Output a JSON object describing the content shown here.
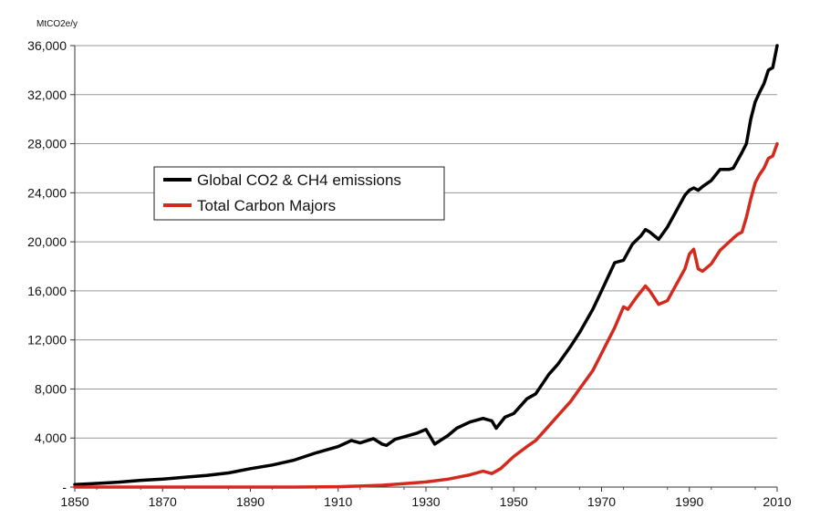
{
  "chart_data": {
    "type": "line",
    "unit_label": "MtCO2e/y",
    "xlim": [
      1850,
      2010
    ],
    "ylim": [
      0,
      36000
    ],
    "x_ticks": [
      "1850",
      "1870",
      "1890",
      "1910",
      "1930",
      "1950",
      "1970",
      "1990",
      "2010"
    ],
    "y_ticks": [
      "-",
      "4,000",
      "8,000",
      "12,000",
      "16,000",
      "20,000",
      "24,000",
      "28,000",
      "32,000",
      "36,000"
    ],
    "grid": "horizontal",
    "legend_position": "upper-left",
    "series": [
      {
        "name": "Global CO2 & CH4 emissions",
        "color": "#000000",
        "x": [
          1850,
          1855,
          1860,
          1865,
          1870,
          1875,
          1880,
          1885,
          1890,
          1895,
          1900,
          1905,
          1910,
          1913,
          1915,
          1918,
          1920,
          1921,
          1923,
          1925,
          1928,
          1930,
          1932,
          1935,
          1937,
          1940,
          1943,
          1945,
          1946,
          1948,
          1950,
          1953,
          1955,
          1958,
          1960,
          1963,
          1965,
          1968,
          1970,
          1973,
          1975,
          1977,
          1979,
          1980,
          1981,
          1983,
          1985,
          1987,
          1989,
          1990,
          1991,
          1992,
          1993,
          1995,
          1997,
          1999,
          2000,
          2002,
          2003,
          2004,
          2005,
          2006,
          2007,
          2008,
          2009,
          2010
        ],
        "y": [
          200,
          300,
          400,
          550,
          650,
          800,
          950,
          1150,
          1500,
          1800,
          2200,
          2800,
          3300,
          3800,
          3600,
          3950,
          3500,
          3400,
          3900,
          4100,
          4400,
          4700,
          3500,
          4200,
          4800,
          5300,
          5600,
          5400,
          4800,
          5700,
          6000,
          7200,
          7600,
          9200,
          10000,
          11500,
          12600,
          14500,
          16000,
          18300,
          18500,
          19800,
          20500,
          21000,
          20800,
          20200,
          21200,
          22500,
          23800,
          24200,
          24400,
          24200,
          24500,
          25000,
          25900,
          25900,
          26000,
          27300,
          28000,
          30000,
          31400,
          32200,
          32900,
          34000,
          34200,
          36000
        ]
      },
      {
        "name": "Total Carbon Majors",
        "color": "#d42a1e",
        "x": [
          1850,
          1880,
          1900,
          1910,
          1915,
          1920,
          1925,
          1930,
          1935,
          1940,
          1943,
          1945,
          1947,
          1950,
          1953,
          1955,
          1958,
          1960,
          1963,
          1965,
          1968,
          1970,
          1973,
          1975,
          1976,
          1978,
          1980,
          1981,
          1983,
          1985,
          1987,
          1989,
          1990,
          1991,
          1992,
          1993,
          1995,
          1997,
          2000,
          2001,
          2002,
          2003,
          2004,
          2005,
          2006,
          2007,
          2008,
          2009,
          2010
        ],
        "y": [
          0,
          0,
          0,
          30,
          80,
          150,
          280,
          420,
          650,
          1000,
          1300,
          1100,
          1500,
          2500,
          3300,
          3800,
          5000,
          5800,
          7000,
          8000,
          9500,
          10900,
          13000,
          14700,
          14500,
          15500,
          16400,
          16000,
          14900,
          15200,
          16500,
          17800,
          19000,
          19400,
          17800,
          17600,
          18200,
          19300,
          20300,
          20600,
          20800,
          22000,
          23500,
          24800,
          25500,
          26000,
          26800,
          27000,
          28000
        ]
      }
    ]
  }
}
